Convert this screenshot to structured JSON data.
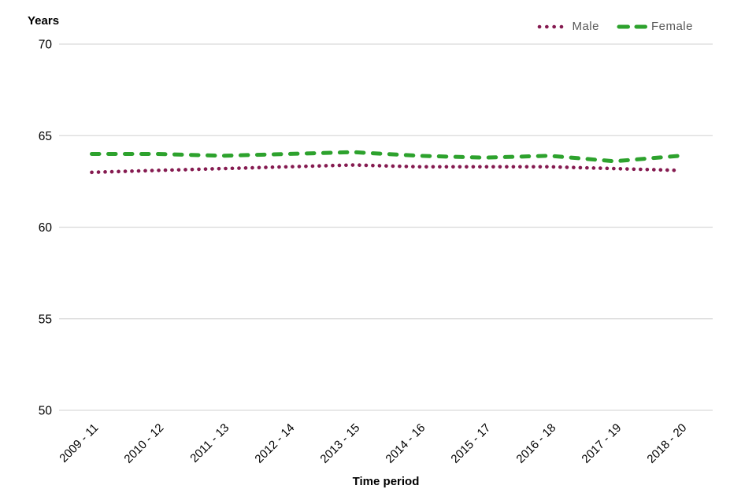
{
  "chart_data": {
    "type": "line",
    "title": "",
    "ylabel": "Years",
    "xlabel": "Time period",
    "ylim": [
      50,
      70
    ],
    "yticks": [
      50,
      55,
      60,
      65,
      70
    ],
    "grid": "horizontal gridlines only",
    "legend_position": "top-right",
    "categories": [
      "2009 - 11",
      "2010 - 12",
      "2011 - 13",
      "2012 - 14",
      "2013 - 15",
      "2014 - 16",
      "2015 - 17",
      "2016 - 18",
      "2017 - 19",
      "2018 - 20"
    ],
    "series": [
      {
        "name": "Male",
        "color": "#851a50",
        "style": "dotted",
        "values": [
          63.0,
          63.1,
          63.2,
          63.3,
          63.4,
          63.3,
          63.3,
          63.3,
          63.2,
          63.1
        ]
      },
      {
        "name": "Female",
        "color": "#2da22d",
        "style": "dashed",
        "values": [
          64.0,
          64.0,
          63.9,
          64.0,
          64.1,
          63.9,
          63.8,
          63.9,
          63.6,
          63.9
        ]
      }
    ],
    "colors": {
      "gridline": "#d9d9d9",
      "tick_label": "#000000",
      "axis_title": "#000000",
      "legend_text": "#595959",
      "background": "#ffffff"
    }
  }
}
